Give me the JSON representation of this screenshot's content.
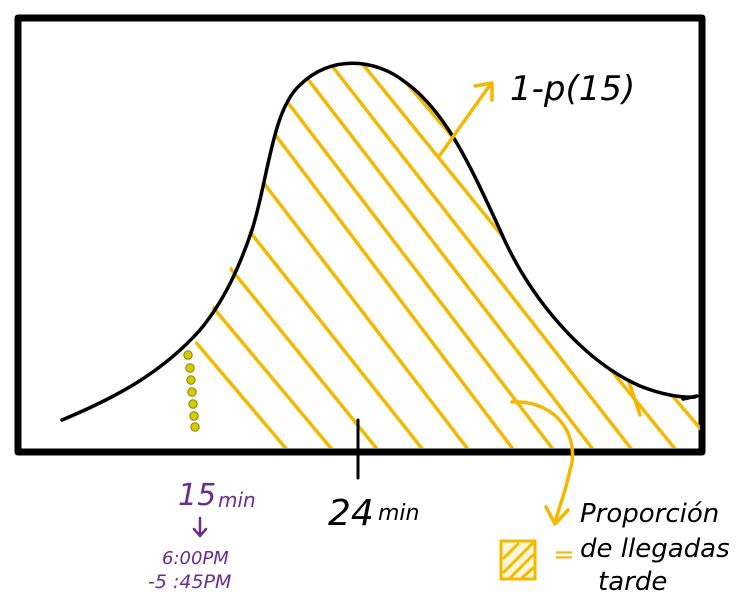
{
  "annotation_complement": "1-p(15)",
  "label_15": "15",
  "label_15_unit": "min",
  "time_line1": "6:00PM",
  "time_line2": "-5 :45PM",
  "label_24": "24",
  "label_24_unit": "min",
  "legend_line1": "Proporción",
  "legend_line2": "de llegadas",
  "legend_line3": "tarde",
  "legend_equals": "=",
  "colors": {
    "curve": "#000000",
    "frame": "#000000",
    "hatch": "#f5b800",
    "dots": "#c8c400",
    "purple": "#6a2c91",
    "text": "#000000"
  }
}
